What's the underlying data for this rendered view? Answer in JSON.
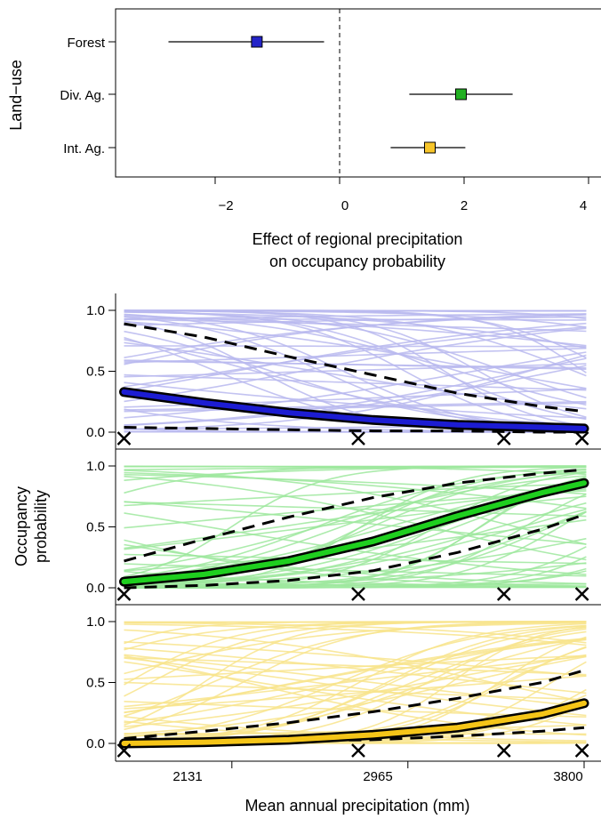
{
  "chart_data": [
    {
      "type": "scatter",
      "title": "",
      "xlabel": [
        "Effect of regional precipitation",
        "on occupancy probability"
      ],
      "ylabel": "Land−use",
      "xlim": [
        -3.6,
        4.2
      ],
      "xticks": [
        -2,
        0,
        2,
        4
      ],
      "xtick_labels": [
        "−2",
        "0",
        "2",
        "4"
      ],
      "reference_line_x": 0,
      "points": [
        {
          "label": "Forest",
          "estimate": -1.33,
          "lower": -2.75,
          "upper": -0.25,
          "color": "#2424c8"
        },
        {
          "label": "Div. Ag.",
          "estimate": 1.95,
          "lower": 1.12,
          "upper": 2.78,
          "color": "#22b022"
        },
        {
          "label": "Int. Ag.",
          "estimate": 1.45,
          "lower": 0.82,
          "upper": 2.02,
          "color": "#f7c52a"
        }
      ]
    },
    {
      "type": "line",
      "ylabel": [
        "Occupancy",
        "probability"
      ],
      "xlabel": "Mean annual precipitation (mm)",
      "xlim": [
        1580,
        3880
      ],
      "xticks": [
        2131,
        2965,
        3800
      ],
      "xtick_labels": [
        "2131",
        "2965",
        "3800"
      ],
      "ylim": [
        -0.08,
        1.12
      ],
      "yticks": [
        0.0,
        0.5,
        1.0
      ],
      "ytick_labels": [
        "0.0",
        "0.5",
        "1.0"
      ],
      "x_markers": [
        1620,
        2730,
        3420,
        3790
      ],
      "panels": [
        {
          "land_use": "Forest",
          "color": "#1c1cd2",
          "light_color": "#b8b8ee",
          "x": [
            1620,
            2000,
            2400,
            2800,
            3200,
            3600,
            3800
          ],
          "mean": [
            0.33,
            0.24,
            0.16,
            0.1,
            0.06,
            0.04,
            0.03
          ],
          "upper": [
            0.89,
            0.78,
            0.62,
            0.47,
            0.32,
            0.21,
            0.17
          ],
          "lower": [
            0.04,
            0.03,
            0.02,
            0.01,
            0.01,
            0.0,
            0.0
          ]
        },
        {
          "land_use": "Div. Ag.",
          "color": "#1fcf1f",
          "light_color": "#9ee89e",
          "x": [
            1620,
            2000,
            2400,
            2800,
            3200,
            3600,
            3800
          ],
          "mean": [
            0.05,
            0.11,
            0.22,
            0.38,
            0.59,
            0.78,
            0.86
          ],
          "upper": [
            0.22,
            0.4,
            0.58,
            0.74,
            0.86,
            0.94,
            0.97
          ],
          "lower": [
            0.0,
            0.02,
            0.06,
            0.14,
            0.29,
            0.48,
            0.6
          ]
        },
        {
          "land_use": "Int. Ag.",
          "color": "#f5c518",
          "light_color": "#f8e48c",
          "x": [
            1620,
            2000,
            2400,
            2800,
            3200,
            3600,
            3800
          ],
          "mean": [
            0.0,
            0.01,
            0.03,
            0.07,
            0.13,
            0.24,
            0.33
          ],
          "upper": [
            0.04,
            0.1,
            0.17,
            0.26,
            0.37,
            0.5,
            0.6
          ],
          "lower": [
            0.04,
            0.03,
            0.02,
            0.03,
            0.06,
            0.1,
            0.13
          ]
        }
      ]
    }
  ]
}
